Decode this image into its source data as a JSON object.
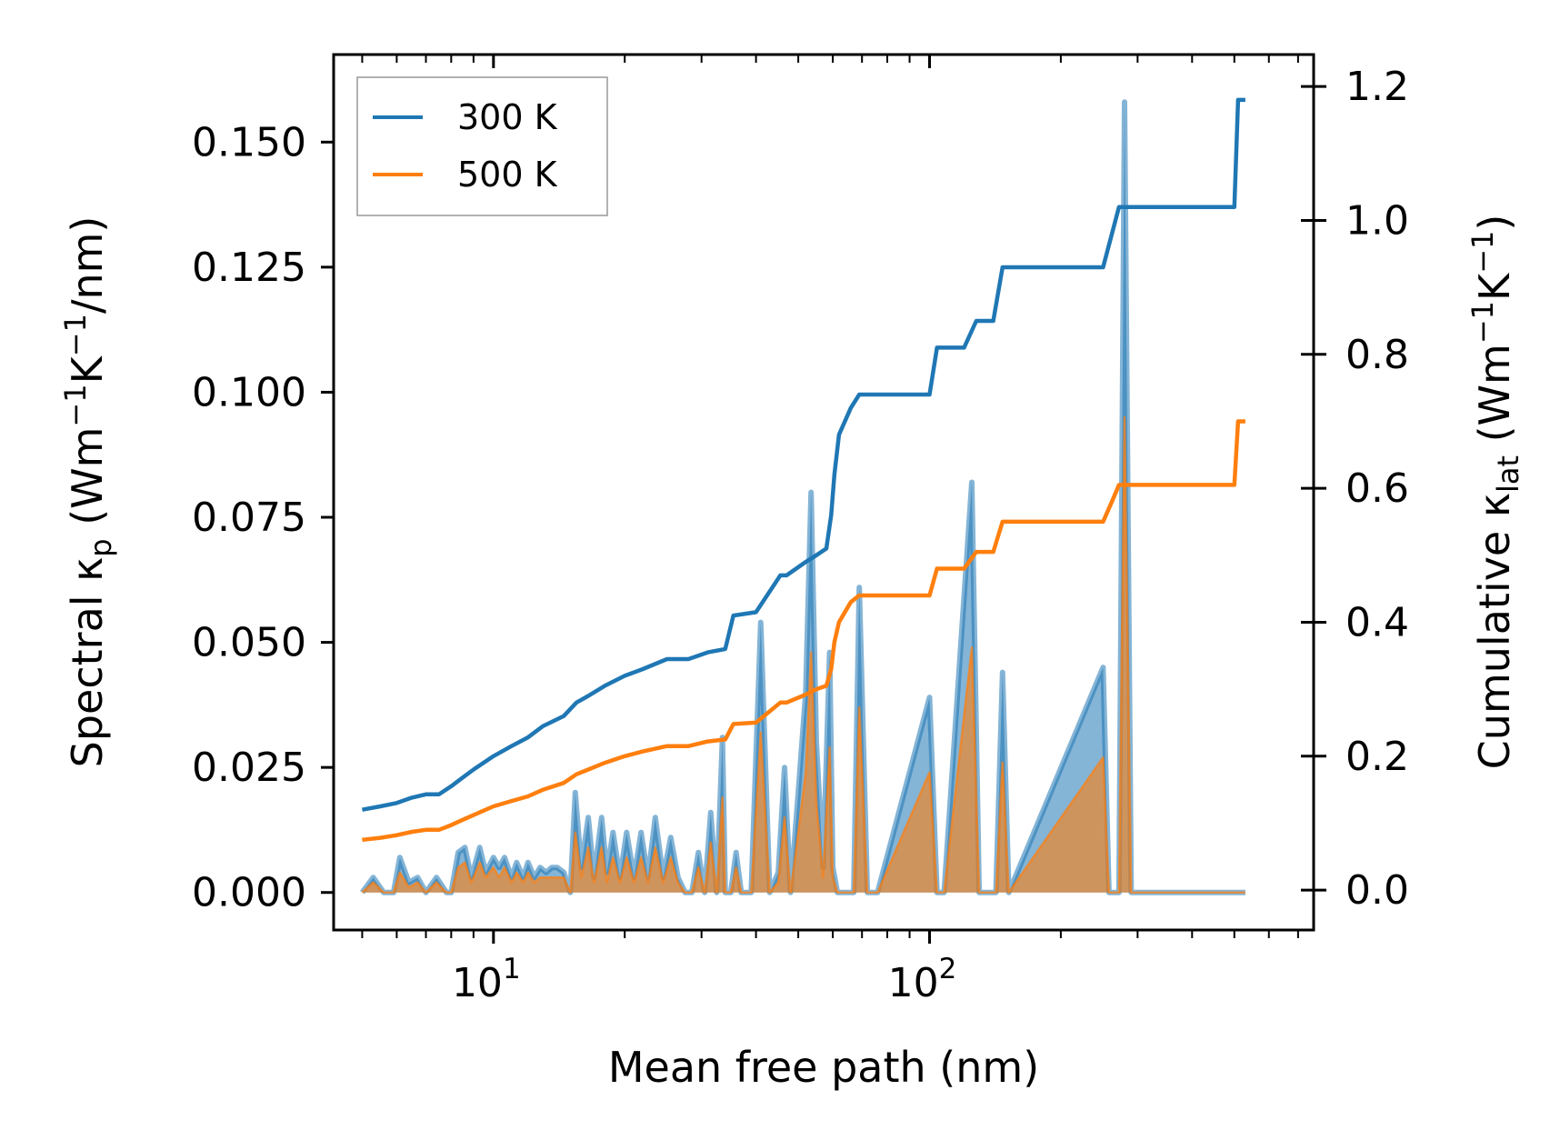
{
  "chart_data": {
    "type": "line",
    "title": "",
    "xlabel": "Mean free path (nm)",
    "ylabel_left_parts": [
      "Spectral κ",
      "p",
      " (Wm",
      "−1",
      "K",
      "−1",
      "/nm)"
    ],
    "ylabel_right_parts": [
      "Cumulative κ",
      "lat",
      " (Wm",
      "−1",
      "K",
      "−1",
      ")"
    ],
    "xscale": "log",
    "xlim": [
      4.3,
      760
    ],
    "x_ticks": [
      {
        "value": 10,
        "base": "10",
        "exp": "1"
      },
      {
        "value": 100,
        "base": "10",
        "exp": "2"
      }
    ],
    "ylim_left": [
      -0.0075,
      0.1675
    ],
    "yticks_left": [
      0.0,
      0.025,
      0.05,
      0.075,
      0.1,
      0.125,
      0.15
    ],
    "ytick_labels_left": [
      "0.000",
      "0.025",
      "0.050",
      "0.075",
      "0.100",
      "0.125",
      "0.150"
    ],
    "ylim_right": [
      -0.0596,
      1.2477
    ],
    "yticks_right": [
      0.0,
      0.2,
      0.4,
      0.6,
      0.8,
      1.0,
      1.2
    ],
    "ytick_labels_right": [
      "0.0",
      "0.2",
      "0.4",
      "0.6",
      "0.8",
      "1.0",
      "1.2"
    ],
    "legend_position": "top-left",
    "series": [
      {
        "name": "300 K",
        "axis": "right",
        "color": "#1f77b4",
        "x": [
          5.0,
          5.5,
          6.0,
          6.5,
          7.0,
          7.5,
          8.0,
          8.5,
          9.0,
          10.0,
          11.0,
          12.0,
          13.0,
          14.5,
          15.5,
          16.5,
          18.0,
          20.0,
          22.0,
          25.0,
          28.0,
          31.0,
          34.0,
          35.5,
          40.0,
          45.5,
          47.0,
          52.0,
          55.0,
          58.0,
          59.5,
          60.5,
          62.0,
          66.0,
          69.0,
          100.0,
          104.0,
          120.0,
          128.0,
          140.0,
          147.0,
          250.0,
          262.0,
          272.0,
          280.0,
          500.0,
          510.0,
          530.0
        ],
        "values": [
          0.12,
          0.125,
          0.13,
          0.138,
          0.143,
          0.143,
          0.155,
          0.168,
          0.18,
          0.2,
          0.215,
          0.228,
          0.245,
          0.26,
          0.28,
          0.29,
          0.305,
          0.32,
          0.33,
          0.345,
          0.345,
          0.355,
          0.36,
          0.41,
          0.415,
          0.47,
          0.47,
          0.49,
          0.5,
          0.51,
          0.56,
          0.62,
          0.68,
          0.72,
          0.74,
          0.74,
          0.81,
          0.81,
          0.85,
          0.85,
          0.93,
          0.93,
          0.98,
          1.02,
          1.02,
          1.02,
          1.18,
          1.18
        ]
      },
      {
        "name": "500 K",
        "axis": "right",
        "color": "#ff7f0e",
        "x": [
          5.0,
          5.5,
          6.0,
          6.5,
          7.0,
          7.5,
          8.0,
          8.5,
          9.0,
          10.0,
          11.0,
          12.0,
          13.0,
          14.5,
          15.5,
          16.5,
          18.0,
          20.0,
          22.0,
          25.0,
          28.0,
          31.0,
          34.0,
          35.5,
          40.0,
          45.5,
          47.0,
          52.0,
          55.0,
          58.0,
          59.5,
          60.5,
          62.0,
          66.0,
          69.0,
          100.0,
          104.0,
          120.0,
          128.0,
          140.0,
          147.0,
          250.0,
          262.0,
          272.0,
          280.0,
          500.0,
          510.0,
          530.0
        ],
        "values": [
          0.075,
          0.078,
          0.082,
          0.087,
          0.09,
          0.09,
          0.097,
          0.105,
          0.112,
          0.125,
          0.133,
          0.14,
          0.15,
          0.16,
          0.173,
          0.18,
          0.19,
          0.2,
          0.207,
          0.215,
          0.215,
          0.222,
          0.225,
          0.248,
          0.25,
          0.28,
          0.28,
          0.292,
          0.3,
          0.305,
          0.33,
          0.37,
          0.4,
          0.43,
          0.44,
          0.44,
          0.48,
          0.48,
          0.505,
          0.505,
          0.55,
          0.55,
          0.58,
          0.605,
          0.605,
          0.605,
          0.7,
          0.7
        ]
      }
    ],
    "spectral_series": [
      {
        "name": "300 K spectral",
        "axis": "left",
        "color": "#1f77b4",
        "style": "filled-area",
        "x": [
          5.0,
          5.3,
          5.6,
          5.9,
          6.1,
          6.4,
          6.7,
          7.0,
          7.4,
          7.8,
          8.0,
          8.3,
          8.6,
          8.9,
          9.3,
          9.6,
          10.0,
          10.3,
          10.6,
          11.0,
          11.3,
          11.7,
          12.0,
          12.4,
          12.8,
          13.2,
          13.6,
          14.0,
          14.5,
          15.0,
          15.4,
          15.9,
          16.5,
          17.0,
          17.7,
          18.2,
          18.8,
          19.5,
          20.2,
          21.0,
          21.8,
          22.6,
          23.5,
          24.5,
          25.5,
          26.5,
          27.5,
          28.5,
          29.5,
          30.5,
          31.5,
          32.5,
          33.5,
          34.0,
          35.0,
          36.0,
          37.0,
          39.0,
          41.0,
          43.0,
          45.0,
          46.5,
          48.0,
          50.0,
          52.0,
          53.5,
          55.0,
          57.0,
          59.0,
          60.0,
          61.5,
          63.0,
          65.0,
          67.0,
          69.0,
          72.0,
          76.0,
          100.0,
          104.0,
          108.0,
          125.0,
          130.0,
          136.0,
          142.0,
          147.0,
          152.0,
          250.0,
          258.0,
          266.0,
          272.0,
          280.0,
          290.0,
          500.0,
          510.0,
          518.0,
          530.0
        ],
        "values": [
          0.0,
          0.003,
          0.0,
          0.0,
          0.007,
          0.002,
          0.003,
          0.0,
          0.003,
          0.0,
          0.0,
          0.008,
          0.009,
          0.003,
          0.009,
          0.004,
          0.007,
          0.005,
          0.007,
          0.003,
          0.006,
          0.003,
          0.006,
          0.003,
          0.005,
          0.004,
          0.005,
          0.005,
          0.004,
          0.0,
          0.02,
          0.005,
          0.015,
          0.003,
          0.015,
          0.004,
          0.012,
          0.003,
          0.012,
          0.003,
          0.012,
          0.003,
          0.015,
          0.003,
          0.011,
          0.003,
          0.0,
          0.0,
          0.008,
          0.0,
          0.016,
          0.0,
          0.031,
          0.0,
          0.0,
          0.008,
          0.0,
          0.0,
          0.054,
          0.0,
          0.004,
          0.025,
          0.0,
          0.02,
          0.04,
          0.08,
          0.03,
          0.005,
          0.048,
          0.005,
          0.0,
          0.0,
          0.0,
          0.0,
          0.061,
          0.0,
          0.0,
          0.039,
          0.0,
          0.0,
          0.082,
          0.0,
          0.0,
          0.0,
          0.044,
          0.0,
          0.045,
          0.0,
          0.0,
          0.0,
          0.158,
          0.0,
          0.0,
          0.0,
          0.0,
          0.0
        ]
      },
      {
        "name": "500 K spectral",
        "axis": "left",
        "color": "#ff7f0e",
        "style": "filled-area",
        "x": [
          5.0,
          5.3,
          5.6,
          5.9,
          6.1,
          6.4,
          6.7,
          7.0,
          7.4,
          7.8,
          8.0,
          8.3,
          8.6,
          8.9,
          9.3,
          9.6,
          10.0,
          10.3,
          10.6,
          11.0,
          11.3,
          11.7,
          12.0,
          12.4,
          12.8,
          13.2,
          13.6,
          14.0,
          14.5,
          15.0,
          15.4,
          15.9,
          16.5,
          17.0,
          17.7,
          18.2,
          18.8,
          19.5,
          20.2,
          21.0,
          21.8,
          22.6,
          23.5,
          24.5,
          25.5,
          26.5,
          27.5,
          28.5,
          29.5,
          30.5,
          31.5,
          32.5,
          33.5,
          34.0,
          35.0,
          36.0,
          37.0,
          39.0,
          41.0,
          43.0,
          45.0,
          46.5,
          48.0,
          50.0,
          52.0,
          53.5,
          55.0,
          57.0,
          59.0,
          60.0,
          61.5,
          63.0,
          65.0,
          67.0,
          69.0,
          72.0,
          76.0,
          100.0,
          104.0,
          108.0,
          125.0,
          130.0,
          136.0,
          142.0,
          147.0,
          152.0,
          250.0,
          258.0,
          266.0,
          272.0,
          280.0,
          290.0,
          500.0,
          510.0,
          518.0,
          530.0
        ],
        "values": [
          0.0,
          0.002,
          0.0,
          0.0,
          0.004,
          0.001,
          0.002,
          0.0,
          0.002,
          0.0,
          0.0,
          0.005,
          0.006,
          0.002,
          0.006,
          0.003,
          0.005,
          0.003,
          0.005,
          0.002,
          0.004,
          0.002,
          0.004,
          0.002,
          0.003,
          0.003,
          0.003,
          0.003,
          0.003,
          0.0,
          0.012,
          0.003,
          0.009,
          0.002,
          0.009,
          0.002,
          0.007,
          0.002,
          0.007,
          0.002,
          0.007,
          0.002,
          0.009,
          0.002,
          0.007,
          0.002,
          0.0,
          0.0,
          0.005,
          0.0,
          0.01,
          0.0,
          0.019,
          0.0,
          0.0,
          0.005,
          0.0,
          0.0,
          0.032,
          0.0,
          0.002,
          0.015,
          0.0,
          0.012,
          0.024,
          0.048,
          0.018,
          0.003,
          0.029,
          0.003,
          0.0,
          0.0,
          0.0,
          0.0,
          0.037,
          0.0,
          0.0,
          0.024,
          0.0,
          0.0,
          0.049,
          0.0,
          0.0,
          0.0,
          0.026,
          0.0,
          0.027,
          0.0,
          0.0,
          0.0,
          0.095,
          0.0,
          0.0,
          0.0,
          0.0,
          0.0
        ]
      }
    ]
  }
}
